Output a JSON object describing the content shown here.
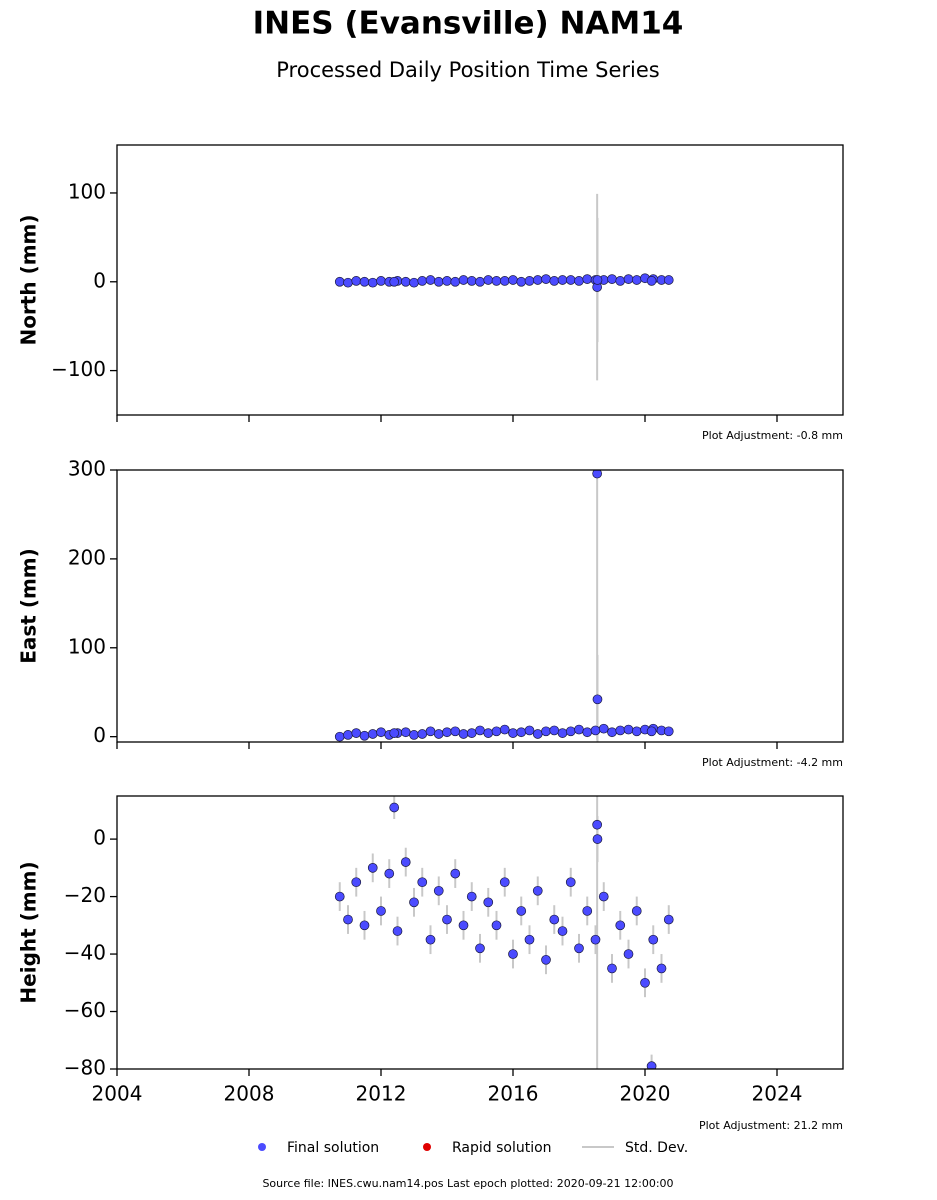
{
  "title": "INES (Evansville) NAM14",
  "subtitle": "Processed Daily Position Time Series",
  "legend": [
    {
      "name": "Final solution",
      "color": "#4b4bff"
    },
    {
      "name": "Rapid solution",
      "color": "#e00000"
    },
    {
      "name": "Std. Dev.",
      "color": "#c8c8c8"
    }
  ],
  "source": "Source file: INES.cwu.nam14.pos  Last epoch plotted: 2020-09-21 12:00:00",
  "chart_data": [
    {
      "type": "scatter",
      "ylabel": "North (mm)",
      "annotation": "Plot Adjustment: -0.8 mm",
      "xlim": [
        2004,
        2026
      ],
      "xticks": [
        2004,
        2008,
        2012,
        2016,
        2020,
        2024
      ],
      "ylim": [
        -150,
        154
      ],
      "yticks": [
        {
          "value": -100,
          "label": "−100"
        },
        0,
        100
      ],
      "color": "#4b4bff",
      "x": [
        2010.75,
        2011.0,
        2011.25,
        2011.5,
        2011.75,
        2012.0,
        2012.25,
        2012.5,
        2012.75,
        2013.0,
        2013.25,
        2013.5,
        2013.75,
        2014.0,
        2014.25,
        2014.5,
        2014.75,
        2015.0,
        2015.25,
        2015.5,
        2015.75,
        2016.0,
        2016.25,
        2016.5,
        2016.75,
        2017.0,
        2017.25,
        2017.5,
        2017.75,
        2018.0,
        2018.25,
        2018.5,
        2018.75,
        2019.0,
        2019.25,
        2019.5,
        2019.75,
        2020.0,
        2020.25,
        2020.5,
        2020.72,
        2018.55,
        2012.4,
        2020.2,
        2018.56
      ],
      "values": [
        0,
        -1,
        1,
        0,
        -1,
        1,
        0,
        1,
        0,
        -1,
        1,
        2,
        0,
        1,
        0,
        2,
        1,
        0,
        2,
        1,
        1,
        2,
        0,
        1,
        2,
        3,
        1,
        2,
        2,
        1,
        3,
        2,
        2,
        3,
        1,
        3,
        2,
        4,
        3,
        2,
        2,
        -6,
        0,
        1,
        2
      ],
      "errors": [
        2,
        2,
        2,
        2,
        2,
        2,
        2,
        2,
        2,
        2,
        2,
        2,
        2,
        2,
        2,
        2,
        2,
        2,
        2,
        2,
        2,
        2,
        2,
        2,
        2,
        2,
        2,
        2,
        2,
        2,
        2,
        2,
        2,
        2,
        2,
        2,
        2,
        2,
        2,
        2,
        2,
        105,
        3,
        3,
        70
      ]
    },
    {
      "type": "scatter",
      "ylabel": "East (mm)",
      "annotation": "Plot Adjustment: -4.2 mm",
      "xlim": [
        2004,
        2026
      ],
      "xticks": [
        2004,
        2008,
        2012,
        2016,
        2020,
        2024
      ],
      "ylim": [
        -6,
        300
      ],
      "yticks": [
        0,
        100,
        200,
        300
      ],
      "color": "#4b4bff",
      "x": [
        2010.75,
        2011.0,
        2011.25,
        2011.5,
        2011.75,
        2012.0,
        2012.25,
        2012.5,
        2012.75,
        2013.0,
        2013.25,
        2013.5,
        2013.75,
        2014.0,
        2014.25,
        2014.5,
        2014.75,
        2015.0,
        2015.25,
        2015.5,
        2015.75,
        2016.0,
        2016.25,
        2016.5,
        2016.75,
        2017.0,
        2017.25,
        2017.5,
        2017.75,
        2018.0,
        2018.25,
        2018.5,
        2018.75,
        2019.0,
        2019.25,
        2019.5,
        2019.75,
        2020.0,
        2020.25,
        2020.5,
        2020.72,
        2018.55,
        2012.4,
        2020.2,
        2018.56
      ],
      "values": [
        0,
        2,
        4,
        1,
        3,
        5,
        2,
        4,
        5,
        2,
        3,
        6,
        3,
        5,
        6,
        3,
        4,
        7,
        4,
        6,
        8,
        4,
        5,
        7,
        3,
        6,
        7,
        4,
        6,
        8,
        5,
        7,
        9,
        5,
        7,
        8,
        6,
        8,
        9,
        7,
        6,
        296,
        4,
        6,
        42
      ],
      "errors": [
        2,
        2,
        2,
        2,
        2,
        2,
        2,
        2,
        2,
        2,
        2,
        2,
        2,
        2,
        2,
        2,
        2,
        2,
        2,
        2,
        2,
        2,
        2,
        2,
        2,
        2,
        2,
        2,
        2,
        2,
        2,
        2,
        2,
        2,
        2,
        2,
        2,
        2,
        2,
        2,
        2,
        300,
        3,
        3,
        50
      ]
    },
    {
      "type": "scatter",
      "ylabel": "Height (mm)",
      "annotation": "Plot Adjustment: 21.2 mm",
      "xlim": [
        2004,
        2026
      ],
      "xticks": [
        2004,
        2008,
        2012,
        2016,
        2020,
        2024
      ],
      "ylim": [
        -80,
        15
      ],
      "yticks": [
        {
          "value": -80,
          "label": "−80"
        },
        {
          "value": -60,
          "label": "−60"
        },
        {
          "value": -40,
          "label": "−40"
        },
        {
          "value": -20,
          "label": "−20"
        },
        0
      ],
      "color": "#4b4bff",
      "x": [
        2010.75,
        2011.0,
        2011.25,
        2011.5,
        2011.75,
        2012.0,
        2012.25,
        2012.5,
        2012.75,
        2013.0,
        2013.25,
        2013.5,
        2013.75,
        2014.0,
        2014.25,
        2014.5,
        2014.75,
        2015.0,
        2015.25,
        2015.5,
        2015.75,
        2016.0,
        2016.25,
        2016.5,
        2016.75,
        2017.0,
        2017.25,
        2017.5,
        2017.75,
        2018.0,
        2018.25,
        2018.5,
        2018.75,
        2019.0,
        2019.25,
        2019.5,
        2019.75,
        2020.0,
        2020.25,
        2020.5,
        2020.72,
        2018.55,
        2012.4,
        2020.2,
        2018.56
      ],
      "values": [
        -20,
        -28,
        -15,
        -30,
        -10,
        -25,
        -12,
        -32,
        -8,
        -22,
        -15,
        -35,
        -18,
        -28,
        -12,
        -30,
        -20,
        -38,
        -22,
        -30,
        -15,
        -40,
        -25,
        -35,
        -18,
        -42,
        -28,
        -32,
        -15,
        -38,
        -25,
        -35,
        -20,
        -45,
        -30,
        -40,
        -25,
        -50,
        -35,
        -45,
        -28,
        5,
        11,
        -79,
        0
      ],
      "errors": [
        5,
        5,
        5,
        5,
        5,
        5,
        5,
        5,
        5,
        5,
        5,
        5,
        5,
        5,
        5,
        5,
        5,
        5,
        5,
        5,
        5,
        5,
        5,
        5,
        5,
        5,
        5,
        5,
        5,
        5,
        5,
        5,
        5,
        5,
        5,
        5,
        5,
        5,
        5,
        5,
        5,
        90,
        4,
        4,
        8
      ]
    }
  ]
}
